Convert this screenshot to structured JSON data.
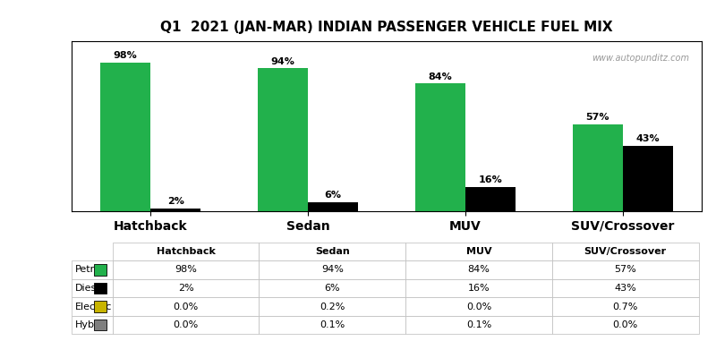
{
  "chart_data": {
    "type": "bar",
    "title": "Q1  2021 (JAN-MAR) INDIAN PASSENGER VEHICLE FUEL MIX",
    "categories": [
      "Hatchback",
      "Sedan",
      "MUV",
      "SUV/Crossover"
    ],
    "series": [
      {
        "name": "Petrol",
        "type": "bar",
        "color": "#22b14c",
        "values": [
          98,
          94,
          84,
          57
        ],
        "value_labels": [
          "98%",
          "94%",
          "84%",
          "57%"
        ]
      },
      {
        "name": "Diesel",
        "type": "bar",
        "color": "#000000",
        "values": [
          2,
          6,
          16,
          43
        ],
        "value_labels": [
          "2%",
          "6%",
          "16%",
          "43%"
        ]
      },
      {
        "name": "Electric",
        "type": "table",
        "color": "#c8b400",
        "values": [
          0.0,
          0.2,
          0.0,
          0.7
        ],
        "value_labels": [
          "0.0%",
          "0.2%",
          "0.0%",
          "0.7%"
        ]
      },
      {
        "name": "Hybrid",
        "type": "table",
        "color": "#7f7f7f",
        "values": [
          0.0,
          0.1,
          0.1,
          0.0
        ],
        "value_labels": [
          "0.0%",
          "0.1%",
          "0.1%",
          "0.0%"
        ]
      }
    ],
    "annotation": "www.autopunditz.com",
    "ylim": [
      0,
      112
    ],
    "yticks": [],
    "data_labels": true,
    "tick_labels": "x",
    "grid": false
  }
}
